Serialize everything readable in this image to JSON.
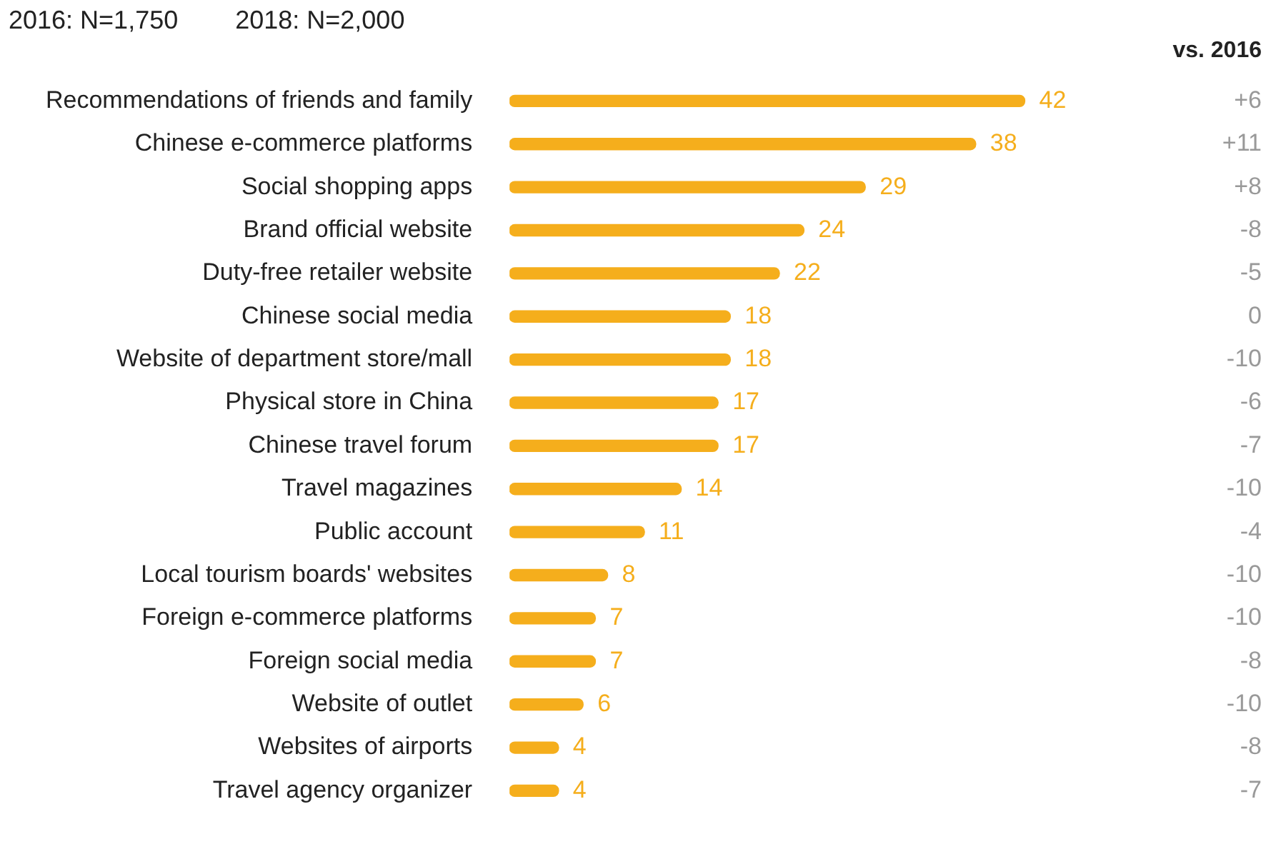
{
  "chart_data": {
    "type": "bar",
    "orientation": "horizontal",
    "subtitle": "2016: N=1,750        2018: N=2,000",
    "categories": [
      "Recommendations of friends and family",
      "Chinese e-commerce platforms",
      "Social shopping apps",
      "Brand official website",
      "Duty-free retailer website",
      "Chinese social media",
      "Website of department store/mall",
      "Physical store in China",
      "Chinese travel forum",
      "Travel magazines",
      "Public account",
      "Local tourism boards' websites",
      "Foreign e-commerce platforms",
      "Foreign social media",
      "Website of outlet",
      "Websites of airports",
      "Travel agency organizer"
    ],
    "values": [
      42,
      38,
      29,
      24,
      22,
      18,
      18,
      17,
      17,
      14,
      11,
      8,
      7,
      7,
      6,
      4,
      4
    ],
    "color": "#f5ae1c",
    "data_labels": true,
    "grid": false,
    "legend": false,
    "annotations": [
      "vs. 2016",
      "+6",
      "+11",
      "+8",
      "-8",
      "-5",
      "0",
      "-10",
      "-6",
      "-7",
      "-10",
      "-4",
      "-10",
      "-10",
      "-8",
      "-10",
      "-8",
      "-7"
    ]
  }
}
